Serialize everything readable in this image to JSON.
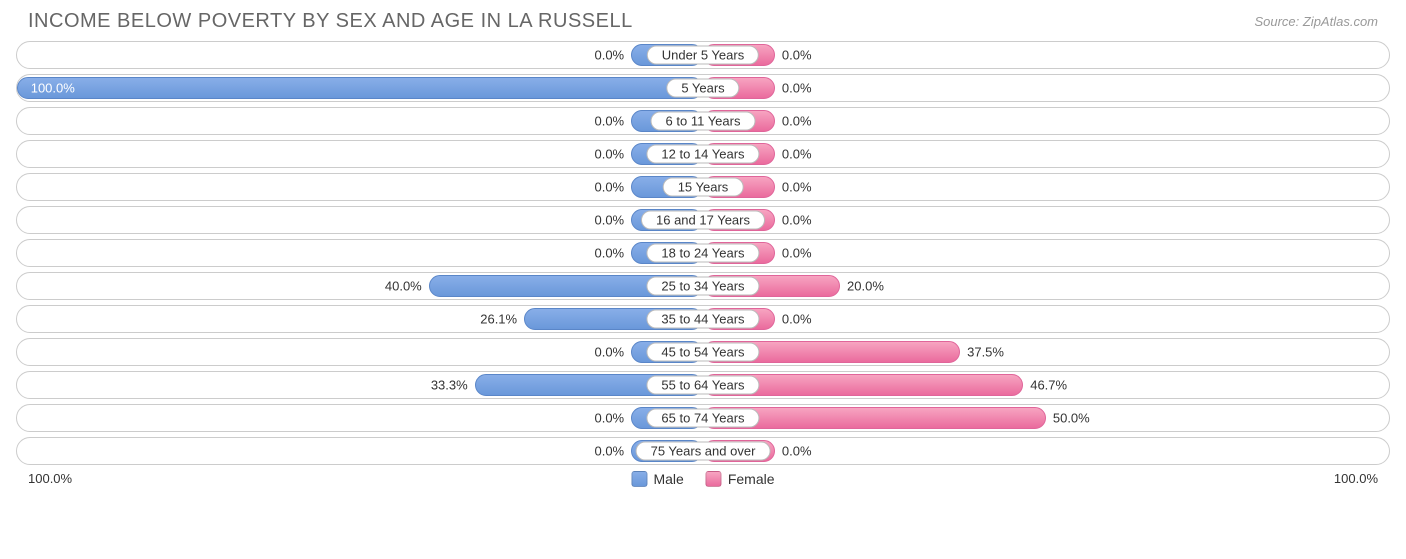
{
  "title": "INCOME BELOW POVERTY BY SEX AND AGE IN LA RUSSELL",
  "source": "Source: ZipAtlas.com",
  "chart": {
    "type": "diverging-bar",
    "axis_max_pct": 100.0,
    "axis_left_label": "100.0%",
    "axis_right_label": "100.0%",
    "min_bar_pct": 10.5,
    "male_colors": {
      "fill_base": "#88aee8",
      "fill_end": "#6a98da",
      "stroke": "#5a86c8"
    },
    "female_colors": {
      "fill_base": "#f7a4c1",
      "fill_end": "#ea6b9d",
      "stroke": "#e0659a"
    },
    "row_border_color": "#cccccc",
    "background_color": "#ffffff",
    "title_color": "#666666",
    "source_color": "#999999",
    "label_color": "#333333",
    "title_fontsize": 20,
    "label_fontsize": 13,
    "rows": [
      {
        "label": "Under 5 Years",
        "male": 0.0,
        "female": 0.0
      },
      {
        "label": "5 Years",
        "male": 100.0,
        "female": 0.0
      },
      {
        "label": "6 to 11 Years",
        "male": 0.0,
        "female": 0.0
      },
      {
        "label": "12 to 14 Years",
        "male": 0.0,
        "female": 0.0
      },
      {
        "label": "15 Years",
        "male": 0.0,
        "female": 0.0
      },
      {
        "label": "16 and 17 Years",
        "male": 0.0,
        "female": 0.0
      },
      {
        "label": "18 to 24 Years",
        "male": 0.0,
        "female": 0.0
      },
      {
        "label": "25 to 34 Years",
        "male": 40.0,
        "female": 20.0
      },
      {
        "label": "35 to 44 Years",
        "male": 26.1,
        "female": 0.0
      },
      {
        "label": "45 to 54 Years",
        "male": 0.0,
        "female": 37.5
      },
      {
        "label": "55 to 64 Years",
        "male": 33.3,
        "female": 46.7
      },
      {
        "label": "65 to 74 Years",
        "male": 0.0,
        "female": 50.0
      },
      {
        "label": "75 Years and over",
        "male": 0.0,
        "female": 0.0
      }
    ]
  },
  "legend": {
    "male": "Male",
    "female": "Female"
  }
}
